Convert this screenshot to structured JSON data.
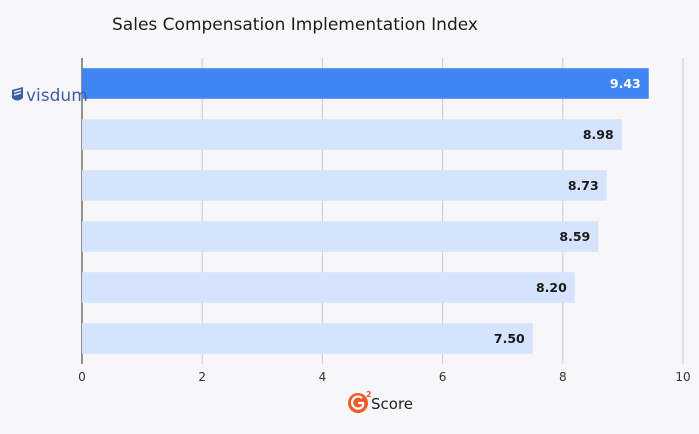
{
  "chart_data": {
    "type": "bar",
    "orientation": "horizontal",
    "title": "Sales Compensation Implementation Index",
    "categories": [
      "visdum",
      "",
      "",
      "",
      "",
      ""
    ],
    "values": [
      9.43,
      8.98,
      8.73,
      8.59,
      8.2,
      7.5
    ],
    "value_labels": [
      "9.43",
      "8.98",
      "8.73",
      "8.59",
      "8.20",
      "7.50"
    ],
    "xlim": [
      0,
      10
    ],
    "xticks": [
      0,
      2,
      4,
      6,
      8,
      10
    ],
    "xtick_labels": [
      "0",
      "2",
      "4",
      "6",
      "8",
      "10"
    ],
    "grid": "vertical",
    "highlight_color": "#3f86f4",
    "bar_color": "#d6e3fc",
    "xlabel": {
      "letter": "2",
      "word": "Score"
    }
  },
  "brand_color": "#3d5fa8",
  "g2_color": "#f15a29"
}
